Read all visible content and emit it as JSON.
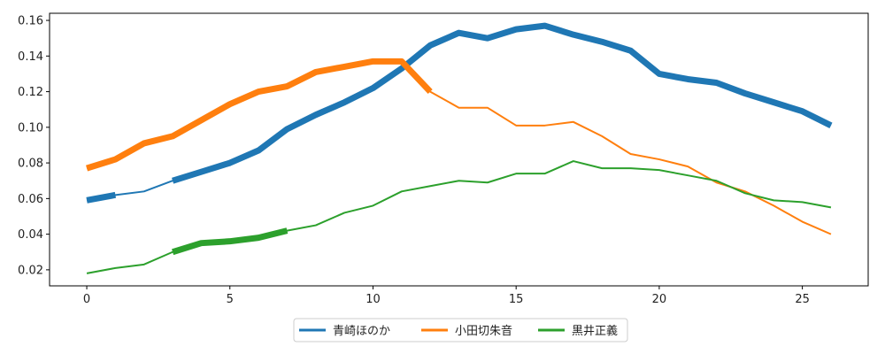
{
  "chart_data": {
    "type": "line",
    "title": "",
    "xlabel": "",
    "ylabel": "",
    "xlim": [
      -1.3,
      27.3
    ],
    "ylim": [
      0.011,
      0.164
    ],
    "xticks": [
      0,
      5,
      10,
      15,
      20,
      25
    ],
    "yticks": [
      0.02,
      0.04,
      0.06,
      0.08,
      0.1,
      0.12,
      0.14,
      0.16
    ],
    "ytick_format": 2,
    "grid": false,
    "legend_position": "bottom-center",
    "x": [
      0,
      1,
      2,
      3,
      4,
      5,
      6,
      7,
      8,
      9,
      10,
      11,
      12,
      13,
      14,
      15,
      16,
      17,
      18,
      19,
      20,
      21,
      22,
      23,
      24,
      25,
      26
    ],
    "series": [
      {
        "name": "青崎ほのか",
        "color": "#1f77b4",
        "values": [
          0.059,
          0.062,
          0.064,
          0.07,
          0.075,
          0.08,
          0.087,
          0.099,
          0.107,
          0.114,
          0.122,
          0.133,
          0.146,
          0.153,
          0.15,
          0.155,
          0.157,
          0.152,
          0.148,
          0.143,
          0.13,
          0.127,
          0.125,
          0.119,
          0.114,
          0.109,
          0.101
        ],
        "highlight": [
          [
            0,
            1
          ],
          [
            3,
            26
          ]
        ]
      },
      {
        "name": "小田切朱音",
        "color": "#ff7f0e",
        "values": [
          0.077,
          0.082,
          0.091,
          0.095,
          0.104,
          0.113,
          0.12,
          0.123,
          0.131,
          0.134,
          0.137,
          0.137,
          0.12,
          0.111,
          0.111,
          0.101,
          0.101,
          0.103,
          0.095,
          0.085,
          0.082,
          0.078,
          0.069,
          0.064,
          0.056,
          0.047,
          0.04
        ],
        "highlight": [
          [
            0,
            12
          ]
        ]
      },
      {
        "name": "黒井正義",
        "color": "#2ca02c",
        "values": [
          0.018,
          0.021,
          0.023,
          0.03,
          0.035,
          0.036,
          0.038,
          0.042,
          0.045,
          0.052,
          0.056,
          0.064,
          0.067,
          0.07,
          0.069,
          0.074,
          0.074,
          0.081,
          0.077,
          0.077,
          0.076,
          0.073,
          0.07,
          0.063,
          0.059,
          0.058,
          0.055
        ],
        "highlight": [
          [
            3,
            7
          ]
        ]
      }
    ]
  }
}
